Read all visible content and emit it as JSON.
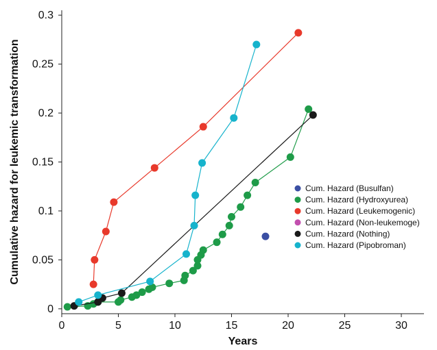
{
  "chart_data": {
    "type": "scatter",
    "xlabel": "Years",
    "ylabel": "Cumulative hazard for leukemic transformation",
    "xlim": [
      0,
      32
    ],
    "ylim": [
      -0.005,
      0.305
    ],
    "x_ticks": [
      0,
      5,
      10,
      15,
      20,
      25,
      30
    ],
    "y_ticks": [
      0,
      0.05,
      0.1,
      0.15,
      0.2,
      0.25,
      0.3
    ],
    "x_tick_labels": [
      "0",
      "5",
      "10",
      "15",
      "20",
      "25",
      "30"
    ],
    "y_tick_labels": [
      "0",
      "0.05",
      "0.1",
      "0.15",
      "0.2",
      "0.25",
      "0.3"
    ],
    "grid": false,
    "legend_position": "right",
    "series": [
      {
        "name": "Cum. Hazard (Busulfan)",
        "color": "#3b4fa3",
        "connected": false,
        "points": [
          [
            18.0,
            0.074
          ]
        ]
      },
      {
        "name": "Cum. Hazard (Hydroxyurea)",
        "color": "#1e9b48",
        "connected": true,
        "points": [
          [
            0.5,
            0.002
          ],
          [
            2.3,
            0.003
          ],
          [
            2.8,
            0.005
          ],
          [
            3.2,
            0.007
          ],
          [
            5.0,
            0.007
          ],
          [
            5.2,
            0.009
          ],
          [
            6.2,
            0.012
          ],
          [
            6.6,
            0.014
          ],
          [
            7.1,
            0.017
          ],
          [
            7.7,
            0.02
          ],
          [
            8.0,
            0.022
          ],
          [
            9.5,
            0.026
          ],
          [
            10.8,
            0.029
          ],
          [
            10.9,
            0.034
          ],
          [
            11.6,
            0.039
          ],
          [
            12.0,
            0.044
          ],
          [
            12.0,
            0.05
          ],
          [
            12.3,
            0.055
          ],
          [
            12.5,
            0.06
          ],
          [
            13.7,
            0.068
          ],
          [
            14.2,
            0.076
          ],
          [
            14.8,
            0.085
          ],
          [
            15.0,
            0.094
          ],
          [
            15.8,
            0.104
          ],
          [
            16.4,
            0.116
          ],
          [
            17.1,
            0.129
          ],
          [
            20.2,
            0.155
          ],
          [
            21.8,
            0.204
          ]
        ]
      },
      {
        "name": "Cum. Hazard (Leukemogenic)",
        "color": "#e8392b",
        "connected": true,
        "points": [
          [
            2.8,
            0.025
          ],
          [
            2.9,
            0.05
          ],
          [
            3.9,
            0.079
          ],
          [
            4.6,
            0.109
          ],
          [
            8.2,
            0.144
          ],
          [
            12.5,
            0.186
          ],
          [
            20.9,
            0.282
          ]
        ]
      },
      {
        "name": "Cum. Hazard (Non-leukemoge)",
        "color": "#c24fae",
        "connected": false,
        "points": []
      },
      {
        "name": "Cum. Hazard (Nothing)",
        "color": "#1a1a1a",
        "connected": true,
        "points": [
          [
            1.1,
            0.003
          ],
          [
            3.2,
            0.007
          ],
          [
            3.6,
            0.011
          ],
          [
            5.3,
            0.016
          ],
          [
            22.2,
            0.198
          ]
        ]
      },
      {
        "name": "Cum. Hazard (Pipobroman)",
        "color": "#16b3cc",
        "connected": true,
        "points": [
          [
            1.5,
            0.007
          ],
          [
            3.2,
            0.014
          ],
          [
            7.8,
            0.028
          ],
          [
            11.0,
            0.056
          ],
          [
            11.7,
            0.085
          ],
          [
            11.8,
            0.116
          ],
          [
            12.4,
            0.149
          ],
          [
            15.2,
            0.195
          ],
          [
            17.2,
            0.27
          ]
        ]
      }
    ]
  }
}
